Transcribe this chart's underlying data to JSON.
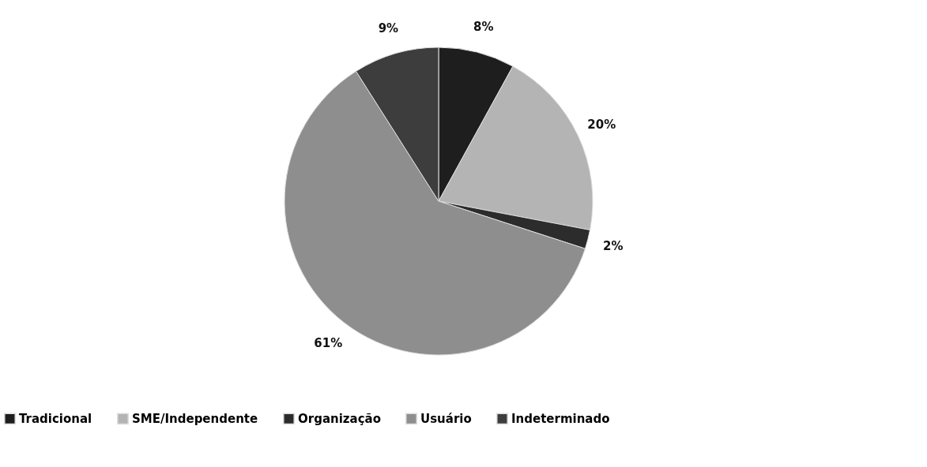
{
  "chart_data": {
    "type": "pie",
    "categories": [
      "Tradicional",
      "SME/Independente",
      "Organização",
      "Usuário",
      "Indeterminado"
    ],
    "values": [
      8,
      20,
      2,
      61,
      9
    ],
    "colors": [
      "#1e1e1e",
      "#b4b4b4",
      "#2c2c2c",
      "#8e8e8e",
      "#3d3d3d"
    ],
    "value_labels": [
      "8%",
      "20%",
      "2%",
      "61%",
      "9%"
    ],
    "legend": "bottom"
  }
}
